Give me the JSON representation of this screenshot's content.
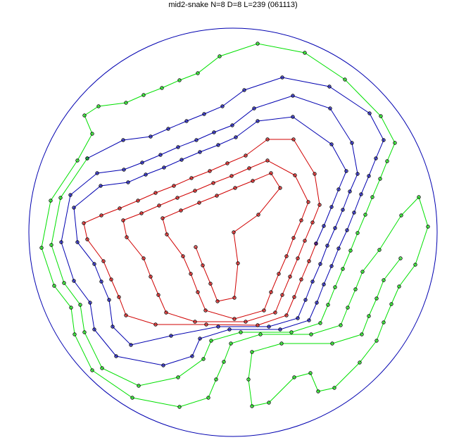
{
  "chart_data": {
    "type": "line",
    "title": "mid2-snake N=8 D=8 L=239 (061113)",
    "boundary": {
      "shape": "circle",
      "center": [
        0,
        0
      ],
      "radius": 290,
      "color": "#0000b0"
    },
    "axes_visible": false,
    "grid": false,
    "marker": "circle",
    "marker_edge_color": "#000000",
    "series": [
      {
        "color": "#d00000",
        "points": [
          [
            -53,
            -21
          ],
          [
            -43,
            -47
          ],
          [
            -32,
            -73
          ],
          [
            -22,
            -98
          ],
          [
            2,
            -93
          ],
          [
            7,
            -44
          ],
          [
            1,
            0
          ],
          [
            36,
            25
          ],
          [
            67,
            63
          ],
          [
            54,
            84
          ],
          [
            28,
            73
          ],
          [
            3,
            63
          ],
          [
            -23,
            52
          ],
          [
            -48,
            42
          ],
          [
            -74,
            31
          ],
          [
            -100,
            20
          ],
          [
            -94,
            -3
          ],
          [
            -71,
            -34
          ],
          [
            -60,
            -59
          ],
          [
            -50,
            -85
          ],
          [
            -39,
            -111
          ],
          [
            2,
            -123
          ],
          [
            44,
            -111
          ],
          [
            54,
            -85
          ],
          [
            65,
            -59
          ],
          [
            76,
            -34
          ],
          [
            86,
            -8
          ],
          [
            97,
            17
          ],
          [
            107,
            43
          ],
          [
            88,
            81
          ],
          [
            49,
            102
          ],
          [
            23,
            91
          ],
          [
            -2,
            80
          ],
          [
            -28,
            70
          ],
          [
            -54,
            59
          ],
          [
            -79,
            49
          ],
          [
            -105,
            38
          ],
          [
            -130,
            27
          ],
          [
            -156,
            17
          ],
          [
            -151,
            -7
          ],
          [
            -127,
            -37
          ],
          [
            -117,
            -63
          ],
          [
            -106,
            -89
          ],
          [
            -95,
            -114
          ],
          [
            -54,
            -127
          ],
          [
            18,
            -127
          ],
          [
            60,
            -114
          ],
          [
            70,
            -89
          ],
          [
            81,
            -63
          ],
          [
            92,
            -37
          ],
          [
            102,
            -12
          ],
          [
            113,
            14
          ],
          [
            123,
            39
          ],
          [
            116,
            83
          ],
          [
            86,
            132
          ],
          [
            49,
            132
          ],
          [
            18,
            109
          ],
          [
            -8,
            98
          ],
          [
            -33,
            87
          ],
          [
            -59,
            77
          ],
          [
            -84,
            66
          ],
          [
            -110,
            56
          ],
          [
            -135,
            45
          ],
          [
            -161,
            34
          ],
          [
            -187,
            24
          ],
          [
            -212,
            13
          ],
          [
            -207,
            -10
          ],
          [
            -184,
            -41
          ],
          [
            -173,
            -67
          ],
          [
            -162,
            -92
          ],
          [
            -152,
            -118
          ],
          [
            -110,
            -131
          ],
          [
            -38,
            -131
          ],
          [
            35,
            -132
          ],
          [
            76,
            -118
          ],
          [
            87,
            -92
          ],
          [
            97,
            -67
          ],
          [
            108,
            -41
          ],
          [
            118,
            -16
          ]
        ]
      },
      {
        "color": "#0000b0",
        "points": [
          [
            118,
            -16
          ],
          [
            129,
            9
          ],
          [
            140,
            36
          ],
          [
            150,
            61
          ],
          [
            161,
            87
          ],
          [
            140,
            125
          ],
          [
            85,
            164
          ],
          [
            35,
            158
          ],
          [
            4,
            135
          ],
          [
            -21,
            124
          ],
          [
            -47,
            114
          ],
          [
            -73,
            103
          ],
          [
            -98,
            92
          ],
          [
            -124,
            82
          ],
          [
            -149,
            71
          ],
          [
            -188,
            66
          ],
          [
            -226,
            35
          ],
          [
            -221,
            -14
          ],
          [
            -197,
            -45
          ],
          [
            -187,
            -70
          ],
          [
            -176,
            -96
          ],
          [
            -171,
            -134
          ],
          [
            -145,
            -160
          ],
          [
            -88,
            -147
          ],
          [
            -21,
            -134
          ],
          [
            51,
            -134
          ],
          [
            92,
            -122
          ],
          [
            103,
            -96
          ],
          [
            113,
            -70
          ],
          [
            124,
            -45
          ],
          [
            134,
            -19
          ],
          [
            145,
            6
          ],
          [
            156,
            32
          ],
          [
            166,
            58
          ],
          [
            177,
            83
          ],
          [
            169,
            127
          ],
          [
            138,
            176
          ],
          [
            85,
            194
          ],
          [
            30,
            176
          ],
          [
            -1,
            152
          ],
          [
            -27,
            142
          ],
          [
            -52,
            131
          ],
          [
            -78,
            121
          ],
          [
            -103,
            110
          ],
          [
            -129,
            99
          ],
          [
            -155,
            89
          ],
          [
            -193,
            84
          ],
          [
            -231,
            53
          ],
          [
            -244,
            -14
          ],
          [
            -226,
            -69
          ],
          [
            -203,
            -100
          ],
          [
            -197,
            -138
          ],
          [
            -166,
            -176
          ],
          [
            -99,
            -189
          ],
          [
            -58,
            -176
          ],
          [
            -47,
            -151
          ],
          [
            -5,
            -138
          ],
          [
            67,
            -138
          ],
          [
            108,
            -125
          ],
          [
            119,
            -100
          ],
          [
            129,
            -74
          ],
          [
            140,
            -48
          ],
          [
            150,
            -23
          ],
          [
            162,
            3
          ],
          [
            172,
            28
          ],
          [
            182,
            54
          ],
          [
            193,
            80
          ],
          [
            203,
            105
          ],
          [
            214,
            131
          ],
          [
            194,
            169
          ],
          [
            137,
            207
          ],
          [
            70,
            220
          ],
          [
            16,
            202
          ],
          [
            -15,
            179
          ],
          [
            -41,
            168
          ],
          [
            -66,
            158
          ],
          [
            -92,
            147
          ],
          [
            -117,
            136
          ],
          [
            -156,
            131
          ],
          [
            -207,
            105
          ]
        ]
      },
      {
        "color": "#00e000",
        "points": [
          [
            -207,
            105
          ],
          [
            -245,
            49
          ],
          [
            -258,
            -18
          ],
          [
            -240,
            -72
          ],
          [
            -217,
            -103
          ],
          [
            -211,
            -142
          ],
          [
            -186,
            -193
          ],
          [
            -134,
            -218
          ],
          [
            -78,
            -206
          ],
          [
            -42,
            -180
          ],
          [
            -31,
            -154
          ],
          [
            11,
            -142
          ],
          [
            83,
            -142
          ],
          [
            124,
            -129
          ],
          [
            135,
            -103
          ],
          [
            145,
            -78
          ],
          [
            156,
            -52
          ],
          [
            167,
            -26
          ],
          [
            177,
            -1
          ],
          [
            188,
            25
          ],
          [
            198,
            50
          ],
          [
            209,
            76
          ],
          [
            219,
            101
          ],
          [
            230,
            127
          ],
          [
            210,
            165
          ],
          [
            159,
            217
          ],
          [
            102,
            255
          ],
          [
            35,
            268
          ],
          [
            -19,
            250
          ],
          [
            -50,
            226
          ],
          [
            -76,
            216
          ],
          [
            -101,
            205
          ],
          [
            -127,
            195
          ],
          [
            -152,
            184
          ],
          [
            -191,
            179
          ],
          [
            -211,
            166
          ],
          [
            -200,
            140
          ],
          [
            -221,
            102
          ],
          [
            -259,
            45
          ],
          [
            -272,
            -22
          ],
          [
            -254,
            -76
          ],
          [
            -230,
            -107
          ],
          [
            -225,
            -145
          ],
          [
            -200,
            -196
          ],
          [
            -143,
            -235
          ],
          [
            -76,
            -248
          ],
          [
            -35,
            -235
          ],
          [
            -24,
            -209
          ],
          [
            -13,
            -184
          ],
          [
            -3,
            -158
          ],
          [
            39,
            -145
          ],
          [
            111,
            -145
          ],
          [
            153,
            -132
          ],
          [
            163,
            -107
          ],
          [
            174,
            -81
          ],
          [
            184,
            -56
          ],
          [
            208,
            -25
          ],
          [
            239,
            24
          ],
          [
            264,
            50
          ],
          [
            277,
            8
          ],
          [
            259,
            -46
          ],
          [
            236,
            -77
          ],
          [
            225,
            -102
          ],
          [
            214,
            -128
          ],
          [
            204,
            -154
          ],
          [
            180,
            -185
          ],
          [
            144,
            -221
          ],
          [
            121,
            -226
          ],
          [
            110,
            -200
          ],
          [
            87,
            -206
          ],
          [
            51,
            -242
          ],
          [
            27,
            -247
          ],
          [
            22,
            -209
          ],
          [
            27,
            -170
          ],
          [
            69,
            -158
          ],
          [
            141,
            -158
          ],
          [
            183,
            -145
          ],
          [
            193,
            -119
          ],
          [
            204,
            -94
          ],
          [
            214,
            -68
          ],
          [
            238,
            -37
          ]
        ]
      }
    ]
  }
}
